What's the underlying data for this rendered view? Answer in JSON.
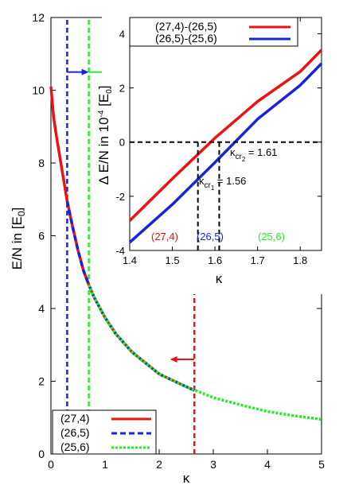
{
  "chart_data": [
    {
      "type": "line",
      "xlabel": "κ",
      "ylabel": "E/N in [E",
      "ylabel_sub": "0",
      "ylabel_tail": "]",
      "xlim": [
        0,
        5
      ],
      "ylim": [
        0,
        12
      ],
      "xticks": [
        "0",
        "1",
        "2",
        "3",
        "4",
        "5"
      ],
      "yticks": [
        "0",
        "2",
        "4",
        "6",
        "8",
        "10",
        "12"
      ],
      "legend_position": "bottom-left",
      "series": [
        {
          "name": "(27,4)",
          "color": "#ee1111",
          "style": "solid",
          "x": [
            0,
            0.05,
            0.1,
            0.2,
            0.3,
            0.4,
            0.5,
            0.6,
            0.7,
            0.8,
            1.0,
            1.2,
            1.5,
            2.0,
            2.5,
            2.65
          ],
          "y": [
            10.1,
            9.25,
            8.75,
            7.85,
            6.95,
            6.25,
            5.6,
            5.05,
            4.65,
            4.3,
            3.75,
            3.3,
            2.8,
            2.2,
            1.85,
            1.75
          ]
        },
        {
          "name": "(26,5)",
          "color": "#1a22dd",
          "style": "dashed",
          "x": [
            0.3,
            0.4,
            0.5,
            0.6,
            0.7,
            0.8,
            1.0,
            1.2,
            1.5,
            2.0,
            2.5,
            2.65
          ],
          "y": [
            6.95,
            6.25,
            5.6,
            5.05,
            4.65,
            4.3,
            3.75,
            3.3,
            2.8,
            2.2,
            1.85,
            1.75
          ]
        },
        {
          "name": "(25,6)",
          "color": "#22ee22",
          "style": "dotted",
          "x": [
            0.7,
            0.8,
            1.0,
            1.2,
            1.5,
            2.0,
            2.5,
            3.0,
            3.5,
            4.0,
            4.5,
            5.0
          ],
          "y": [
            4.65,
            4.3,
            3.75,
            3.3,
            2.8,
            2.2,
            1.85,
            1.55,
            1.35,
            1.17,
            1.05,
            0.95
          ]
        }
      ],
      "vertical_lines": [
        {
          "x": 0.3,
          "color": "#1a22dd"
        },
        {
          "x": 0.7,
          "color": "#22ee22"
        },
        {
          "x": 2.65,
          "color": "#ee1111"
        }
      ],
      "arrows": [
        {
          "x_from": 0.3,
          "x_to": 0.7,
          "y": 10.5,
          "color": "#1a22dd"
        },
        {
          "x_from": 0.7,
          "x_to": 1.1,
          "y": 10.5,
          "color": "#22ee22"
        },
        {
          "x_from": 2.65,
          "x_to": 2.2,
          "y": 2.6,
          "color": "#ee1111"
        }
      ]
    },
    {
      "type": "line",
      "xlabel": "κ",
      "ylabel_pre": "Δ E/N in 10",
      "ylabel_sup": "-4",
      "ylabel_mid": " [E",
      "ylabel_sub": "0",
      "ylabel_tail": "]",
      "xlim": [
        1.4,
        1.85
      ],
      "ylim": [
        -4,
        4.6
      ],
      "xticks": [
        "1.4",
        "1.5",
        "1.6",
        "1.7",
        "1.8"
      ],
      "yticks": [
        "-4",
        "-2",
        "0",
        "2",
        "4"
      ],
      "legend_position": "top-right",
      "series": [
        {
          "name": "(27,4)-(26,5)",
          "color": "#ee1111",
          "x": [
            1.4,
            1.5,
            1.6,
            1.7,
            1.8,
            1.85
          ],
          "y": [
            -2.9,
            -1.35,
            0.15,
            1.5,
            2.6,
            3.4
          ]
        },
        {
          "name": "(26,5)-(25,6)",
          "color": "#1a22dd",
          "x": [
            1.4,
            1.5,
            1.6,
            1.7,
            1.8,
            1.85
          ],
          "y": [
            -3.7,
            -2.3,
            -0.75,
            0.85,
            2.1,
            2.9
          ]
        }
      ],
      "annotations": {
        "kcr2_sym": "κ",
        "kcr2_sub": "cr",
        "kcr2_subsub": "2",
        "kcr2_val": " = 1.61",
        "kcr1_sym": "κ",
        "kcr1_sub": "cr",
        "kcr1_subsub": "1",
        "kcr1_val": " = 1.56",
        "kcr1_x": 1.56,
        "kcr2_x": 1.61,
        "region_27_4": "(27,4)",
        "region_26_5": "(26,5)",
        "region_25_6": "(25,6)"
      }
    }
  ]
}
